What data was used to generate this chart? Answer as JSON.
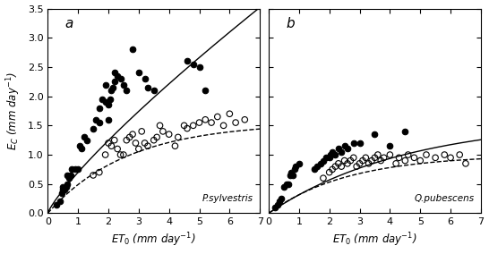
{
  "panel_a_label": "a",
  "panel_b_label": "b",
  "species_a": "P.sylvestris",
  "species_b": "Q.pubescens",
  "xlabel": "$ET_0$ (mm day$^{-1}$)",
  "ylabel": "$E_C$ (mm day$^{-1}$)",
  "xlim": [
    0,
    7
  ],
  "ylim": [
    0,
    3.5
  ],
  "xticks": [
    0,
    1,
    2,
    3,
    4,
    5,
    6,
    7
  ],
  "yticks": [
    0.0,
    0.5,
    1.0,
    1.5,
    2.0,
    2.5,
    3.0,
    3.5
  ],
  "panel_a_closed_x": [
    0.3,
    0.4,
    0.45,
    0.5,
    0.5,
    0.55,
    0.6,
    0.65,
    0.65,
    0.7,
    0.75,
    0.8,
    0.9,
    1.0,
    1.05,
    1.1,
    1.2,
    1.3,
    1.5,
    1.6,
    1.7,
    1.7,
    1.8,
    1.9,
    1.9,
    2.0,
    2.0,
    2.05,
    2.1,
    2.15,
    2.2,
    2.2,
    2.3,
    2.4,
    2.5,
    2.6,
    2.8,
    3.0,
    3.2,
    3.3,
    3.5,
    4.6,
    4.8,
    5.0,
    5.2
  ],
  "panel_a_closed_y": [
    0.15,
    0.2,
    0.35,
    0.4,
    0.45,
    0.4,
    0.45,
    0.5,
    0.65,
    0.6,
    0.65,
    0.75,
    0.75,
    0.75,
    1.15,
    1.1,
    1.3,
    1.25,
    1.45,
    1.6,
    1.55,
    1.8,
    1.95,
    1.9,
    2.2,
    1.6,
    1.85,
    1.95,
    2.1,
    2.15,
    2.25,
    2.4,
    2.35,
    2.3,
    2.2,
    2.1,
    2.8,
    2.4,
    2.3,
    2.15,
    2.1,
    2.6,
    2.55,
    2.5,
    2.1
  ],
  "panel_a_open_x": [
    1.5,
    1.7,
    1.9,
    2.0,
    2.1,
    2.2,
    2.3,
    2.4,
    2.5,
    2.6,
    2.7,
    2.8,
    2.9,
    3.0,
    3.1,
    3.2,
    3.3,
    3.5,
    3.6,
    3.7,
    3.8,
    4.0,
    4.2,
    4.3,
    4.5,
    4.6,
    4.8,
    5.0,
    5.2,
    5.4,
    5.6,
    5.8,
    6.0,
    6.2,
    6.5
  ],
  "panel_a_open_y": [
    0.65,
    0.7,
    1.0,
    1.2,
    1.15,
    1.25,
    1.1,
    1.0,
    1.0,
    1.25,
    1.3,
    1.35,
    1.2,
    1.1,
    1.4,
    1.2,
    1.15,
    1.25,
    1.3,
    1.5,
    1.4,
    1.35,
    1.15,
    1.3,
    1.5,
    1.45,
    1.5,
    1.55,
    1.6,
    1.55,
    1.65,
    1.5,
    1.7,
    1.55,
    1.6
  ],
  "panel_b_closed_x": [
    0.2,
    0.3,
    0.35,
    0.4,
    0.5,
    0.6,
    0.65,
    0.7,
    0.75,
    0.8,
    0.85,
    0.9,
    1.0,
    1.5,
    1.6,
    1.7,
    1.8,
    1.9,
    2.0,
    2.05,
    2.1,
    2.2,
    2.3,
    2.4,
    2.5,
    2.6,
    2.8,
    3.0,
    3.5,
    4.0,
    4.5
  ],
  "panel_b_closed_y": [
    0.1,
    0.15,
    0.2,
    0.25,
    0.45,
    0.5,
    0.5,
    0.65,
    0.7,
    0.65,
    0.75,
    0.8,
    0.85,
    0.75,
    0.8,
    0.85,
    0.9,
    0.95,
    0.95,
    1.0,
    1.05,
    1.0,
    1.1,
    1.05,
    1.15,
    1.1,
    1.2,
    1.2,
    1.35,
    1.15,
    1.4
  ],
  "panel_b_open_x": [
    1.8,
    2.0,
    2.1,
    2.2,
    2.3,
    2.4,
    2.5,
    2.6,
    2.7,
    2.8,
    2.9,
    3.0,
    3.1,
    3.2,
    3.3,
    3.4,
    3.5,
    3.6,
    3.7,
    3.8,
    4.0,
    4.2,
    4.3,
    4.5,
    4.6,
    4.8,
    5.0,
    5.2,
    5.5,
    5.8,
    6.0,
    6.3,
    6.5
  ],
  "panel_b_open_y": [
    0.6,
    0.7,
    0.75,
    0.8,
    0.85,
    0.8,
    0.9,
    0.85,
    0.9,
    0.95,
    0.8,
    0.85,
    0.9,
    0.95,
    0.85,
    0.9,
    0.95,
    1.0,
    0.9,
    0.95,
    1.0,
    0.85,
    0.95,
    0.9,
    1.0,
    0.95,
    0.9,
    1.0,
    0.95,
    1.0,
    0.95,
    1.0,
    0.85
  ],
  "solid_a_A": 0.55,
  "solid_a_b": 0.55,
  "dashed_a_A": 1.55,
  "dashed_a_b": 0.38,
  "solid_b_A": 1.6,
  "solid_b_b": 0.22,
  "dashed_b_A": 1.0,
  "dashed_b_b": 0.38,
  "marker_size": 22,
  "marker_lw": 0.8,
  "line_color": "#000000",
  "background_color": "#ffffff"
}
